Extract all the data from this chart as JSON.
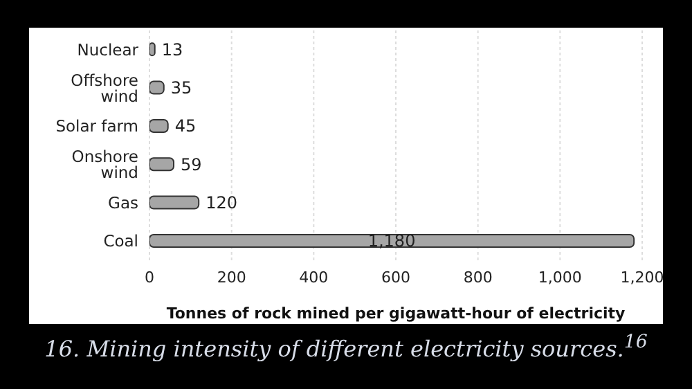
{
  "chart_data": {
    "type": "bar",
    "orientation": "horizontal",
    "title": "16. Mining intensity of different electricity sources.$^{16}$",
    "xlabel": "Tonnes of rock mined per gigawatt-hour of electricity",
    "categories": [
      "Nuclear",
      "Offshore wind",
      "Solar farm",
      "Onshore wind",
      "Gas",
      "Coal"
    ],
    "values": [
      13,
      35,
      45,
      59,
      120,
      1180
    ],
    "color": "#a6a6a6",
    "xlim": [
      0,
      1200
    ],
    "xticks": [
      {
        "value": 0,
        "label": "0"
      },
      {
        "value": 200,
        "label": "200"
      },
      {
        "value": 400,
        "label": "400"
      },
      {
        "value": 600,
        "label": "600"
      },
      {
        "value": 800,
        "label": "800"
      },
      {
        "value": 1000,
        "label": "1,000"
      },
      {
        "value": 1200,
        "label": "1,200"
      }
    ],
    "value_labels": [
      "13",
      "35",
      "45",
      "59",
      "120",
      "1,180"
    ],
    "grid": "x"
  }
}
